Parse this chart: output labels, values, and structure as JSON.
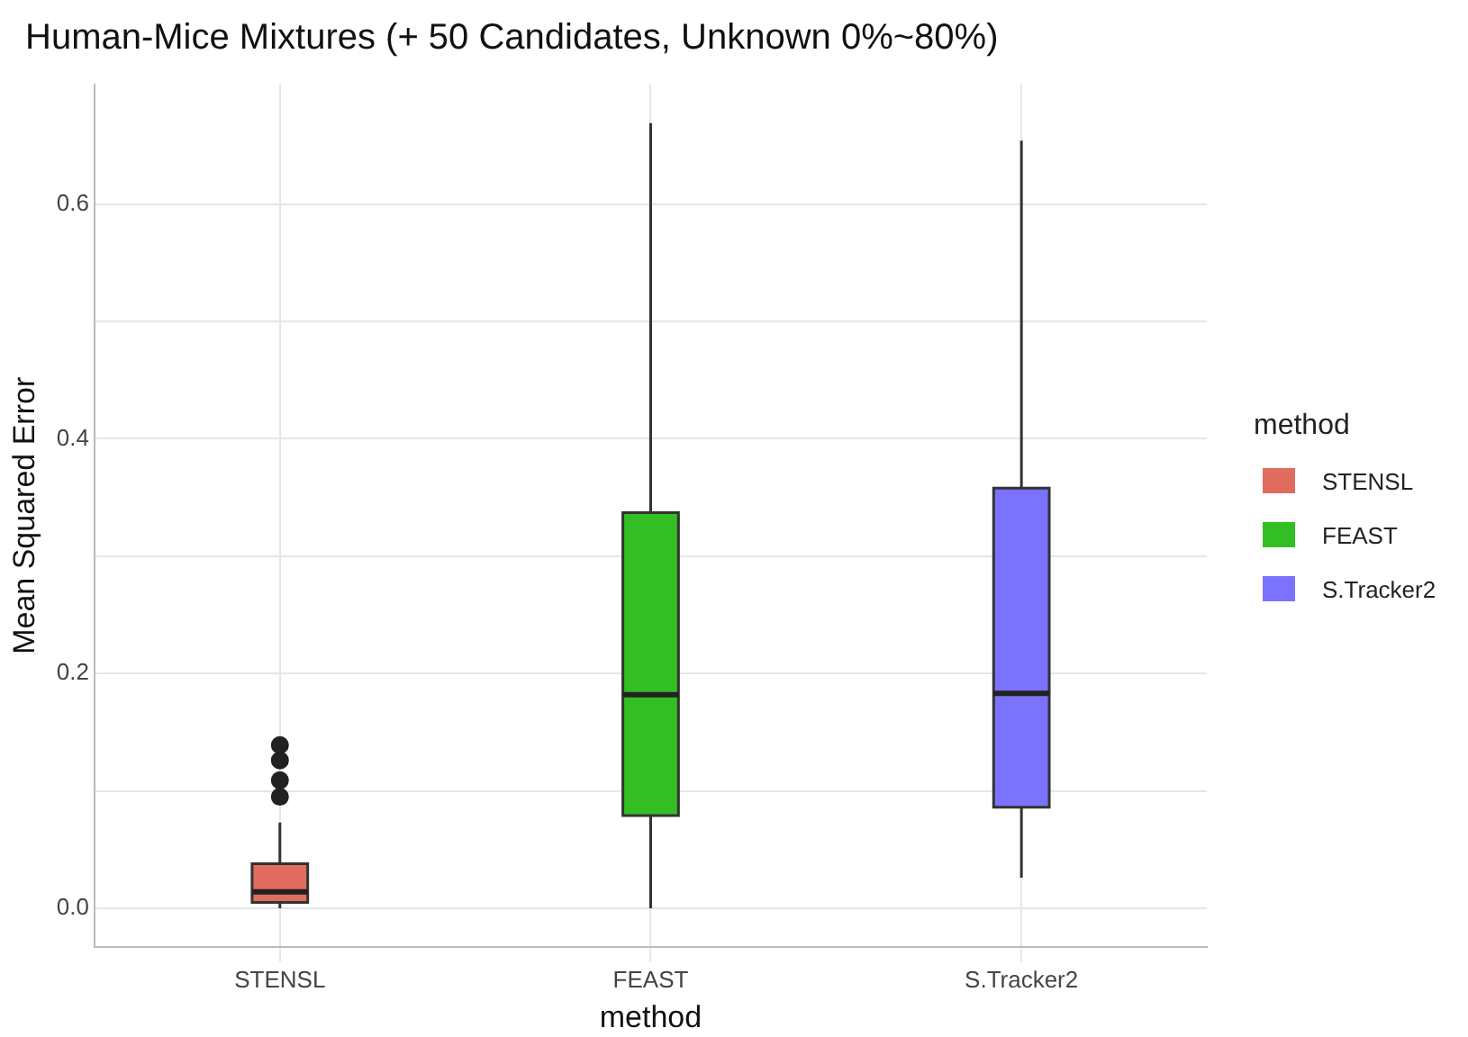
{
  "chart_data": {
    "type": "box",
    "title": "Human-Mice Mixtures (+ 50 Candidates, Unknown 0%~80%)",
    "xlabel": "method",
    "ylabel": "Mean Squared Error",
    "legend_title": "method",
    "categories": [
      "STENSL",
      "FEAST",
      "S.Tracker2"
    ],
    "series": [
      {
        "name": "STENSL",
        "color": "#e06c5f",
        "boxes": [
          {
            "low": 0.0,
            "q1": 0.005,
            "median": 0.014,
            "q3": 0.038,
            "high": 0.073,
            "outliers": [
              0.095,
              0.109,
              0.126,
              0.139
            ]
          },
          null,
          null
        ]
      },
      {
        "name": "FEAST",
        "color": "#33bf23",
        "boxes": [
          null,
          {
            "low": 0.0,
            "q1": 0.079,
            "median": 0.182,
            "q3": 0.337,
            "high": 0.669
          },
          null
        ]
      },
      {
        "name": "S.Tracker2",
        "color": "#7b72fd",
        "boxes": [
          null,
          null,
          {
            "low": 0.026,
            "q1": 0.086,
            "median": 0.183,
            "q3": 0.358,
            "high": 0.654
          }
        ]
      }
    ],
    "ylim": [
      -0.033,
      0.702
    ],
    "yticks": [
      {
        "value": 0,
        "label": "0.0"
      },
      {
        "value": 0.1,
        "label": null
      },
      0.2,
      {
        "value": 0.3,
        "label": null
      },
      0.4,
      {
        "value": 0.5,
        "label": null
      },
      0.6
    ],
    "grid": true,
    "legend": "right"
  }
}
